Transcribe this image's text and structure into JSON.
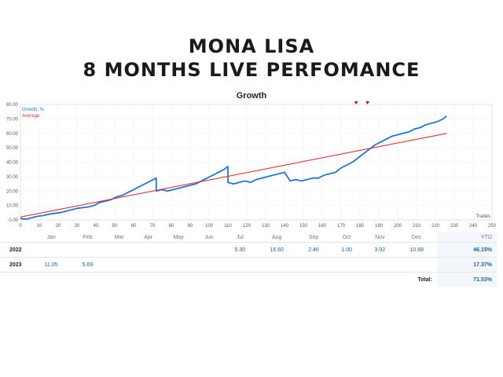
{
  "header": {
    "line1": "MONA LISA",
    "line2": "8 MONTHS LIVE PERFOMANCE"
  },
  "chart_data": {
    "type": "line",
    "title": "Growth",
    "xlabel": "Trades",
    "ylabel": "",
    "xlim": [
      0,
      250
    ],
    "ylim": [
      0,
      80
    ],
    "x_ticks": [
      0,
      10,
      20,
      30,
      40,
      50,
      60,
      70,
      80,
      90,
      100,
      110,
      120,
      130,
      140,
      150,
      160,
      170,
      180,
      190,
      200,
      210,
      220,
      230,
      240,
      250
    ],
    "y_ticks": [
      0,
      10,
      20,
      30,
      40,
      50,
      60,
      70,
      80
    ],
    "grid": true,
    "legend_position": "top-left",
    "series": [
      {
        "name": "Growth, %",
        "color": "#1f77d4",
        "points": [
          [
            0,
            1
          ],
          [
            3,
            0.5
          ],
          [
            6,
            1.5
          ],
          [
            9,
            2.5
          ],
          [
            12,
            3
          ],
          [
            15,
            4
          ],
          [
            18,
            4.5
          ],
          [
            21,
            5
          ],
          [
            24,
            6
          ],
          [
            27,
            7
          ],
          [
            30,
            8
          ],
          [
            33,
            8.5
          ],
          [
            36,
            9
          ],
          [
            39,
            10
          ],
          [
            42,
            12
          ],
          [
            45,
            13
          ],
          [
            48,
            14
          ],
          [
            51,
            16
          ],
          [
            54,
            17
          ],
          [
            57,
            19
          ],
          [
            60,
            21
          ],
          [
            63,
            23
          ],
          [
            66,
            25
          ],
          [
            69,
            27
          ],
          [
            72,
            29
          ],
          [
            72,
            20
          ],
          [
            75,
            21
          ],
          [
            78,
            20
          ],
          [
            81,
            21
          ],
          [
            84,
            22
          ],
          [
            87,
            23
          ],
          [
            90,
            24
          ],
          [
            93,
            25
          ],
          [
            96,
            27
          ],
          [
            99,
            29
          ],
          [
            102,
            31
          ],
          [
            105,
            33
          ],
          [
            108,
            35
          ],
          [
            110,
            37
          ],
          [
            110,
            26
          ],
          [
            113,
            25
          ],
          [
            116,
            26
          ],
          [
            119,
            27
          ],
          [
            122,
            26
          ],
          [
            125,
            28
          ],
          [
            128,
            29
          ],
          [
            131,
            30
          ],
          [
            134,
            31
          ],
          [
            137,
            32
          ],
          [
            140,
            33
          ],
          [
            143,
            27
          ],
          [
            146,
            28
          ],
          [
            149,
            27
          ],
          [
            152,
            28
          ],
          [
            155,
            29
          ],
          [
            158,
            29
          ],
          [
            161,
            31
          ],
          [
            164,
            32
          ],
          [
            167,
            33
          ],
          [
            170,
            36
          ],
          [
            173,
            38
          ],
          [
            176,
            40
          ],
          [
            179,
            43
          ],
          [
            182,
            46
          ],
          [
            185,
            49
          ],
          [
            188,
            52
          ],
          [
            191,
            54
          ],
          [
            194,
            56
          ],
          [
            197,
            58
          ],
          [
            200,
            59
          ],
          [
            203,
            60
          ],
          [
            206,
            61
          ],
          [
            209,
            63
          ],
          [
            212,
            64
          ],
          [
            215,
            66
          ],
          [
            218,
            67
          ],
          [
            221,
            68
          ],
          [
            224,
            70
          ],
          [
            226,
            72
          ]
        ]
      },
      {
        "name": "Average",
        "color": "#e03030",
        "points": [
          [
            0,
            2
          ],
          [
            226,
            60
          ]
        ]
      }
    ],
    "markers": [
      {
        "x": 178,
        "label": ""
      },
      {
        "x": 184,
        "label": ""
      }
    ]
  },
  "table": {
    "months": [
      "Jan",
      "Feb",
      "Mar",
      "Apr",
      "May",
      "Jun",
      "Jul",
      "Aug",
      "Sep",
      "Oct",
      "Nov",
      "Dec"
    ],
    "ytd_label": "YTD",
    "rows": [
      {
        "year": "2022",
        "values": [
          "",
          "",
          "",
          "",
          "",
          "",
          "5.30",
          "16.60",
          "2.46",
          "1.00",
          "3.92",
          "10.68"
        ],
        "ytd": "46.15%"
      },
      {
        "year": "2023",
        "values": [
          "11.05",
          "5.69",
          "",
          "",
          "",
          "",
          "",
          "",
          "",
          "",
          "",
          ""
        ],
        "ytd": "17.37%"
      }
    ],
    "total_label": "Total:",
    "total_value": "71.53%"
  }
}
